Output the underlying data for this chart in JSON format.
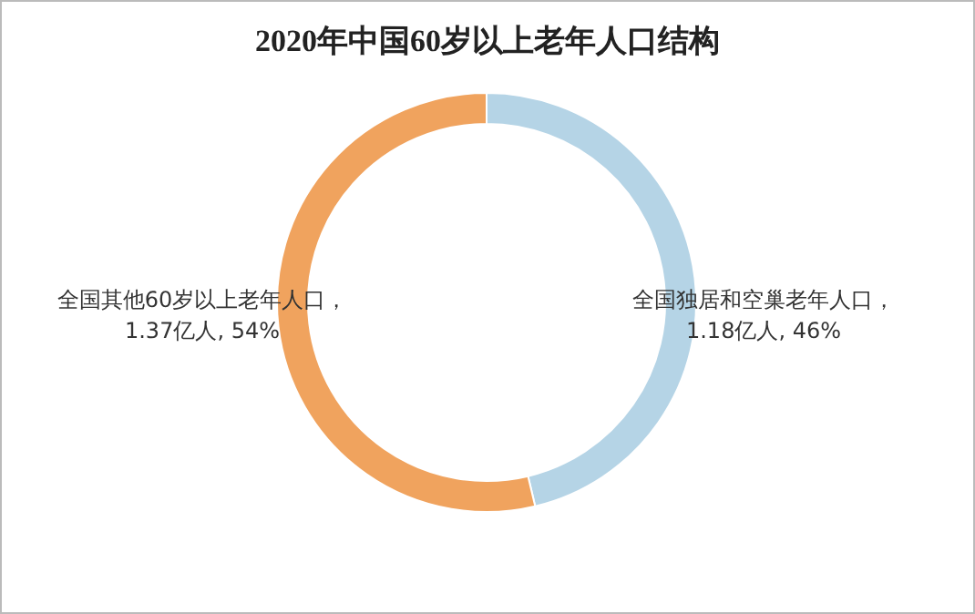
{
  "chart_data": {
    "type": "donut",
    "title": "2020年中国60岁以上老年人口结构",
    "categories": [
      "全国独居和空巢老年人口",
      "全国其他60岁以上老年人口"
    ],
    "values": [
      1.18,
      1.37
    ],
    "value_labels": [
      "，1.18亿人, 46%",
      "，1.37亿人, 54%"
    ],
    "colors": [
      "#b5d4e6",
      "#f0a35e"
    ],
    "legend": false
  }
}
